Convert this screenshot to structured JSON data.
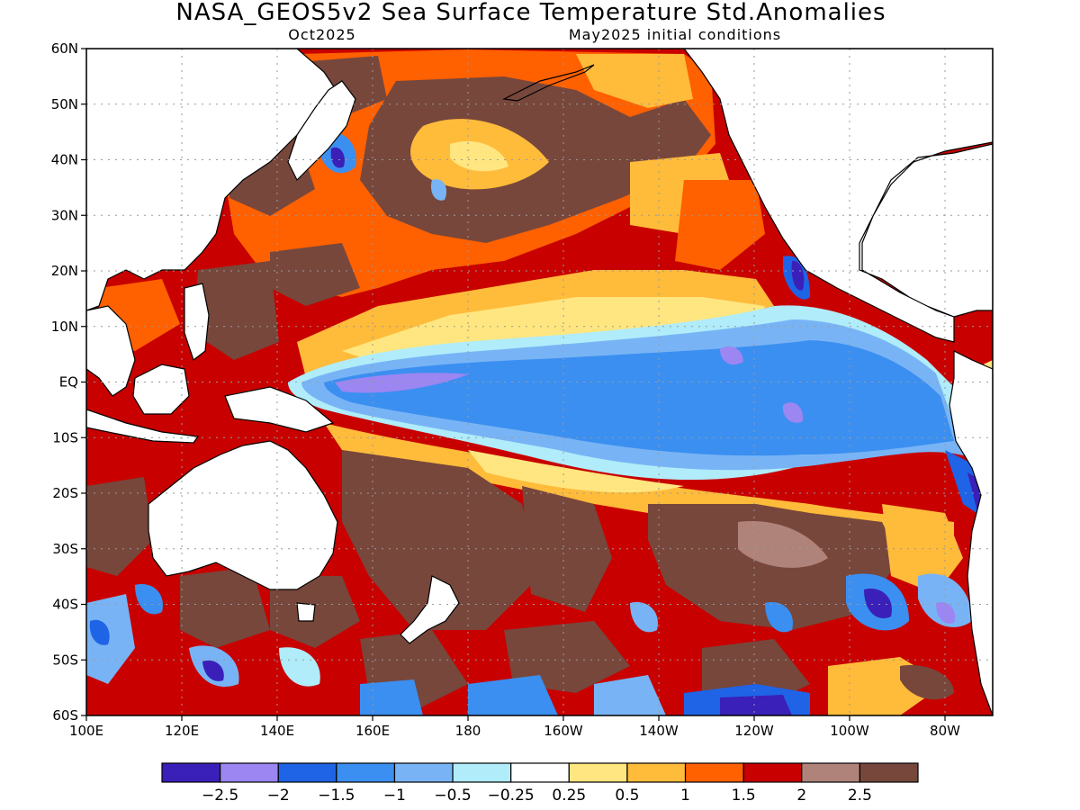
{
  "title": "NASA_GEOS5v2 Sea Surface Temperature Std.Anomalies",
  "subtitle_left": "Oct2025",
  "subtitle_right": "May2025 initial conditions",
  "map": {
    "lon_range": [
      100,
      290
    ],
    "lat_range": [
      -60,
      60
    ],
    "lat_ticks": [
      {
        "value": 60,
        "label": "60N"
      },
      {
        "value": 50,
        "label": "50N"
      },
      {
        "value": 40,
        "label": "40N"
      },
      {
        "value": 30,
        "label": "30N"
      },
      {
        "value": 20,
        "label": "20N"
      },
      {
        "value": 10,
        "label": "10N"
      },
      {
        "value": 0,
        "label": "EQ"
      },
      {
        "value": -10,
        "label": "10S"
      },
      {
        "value": -20,
        "label": "20S"
      },
      {
        "value": -30,
        "label": "30S"
      },
      {
        "value": -40,
        "label": "40S"
      },
      {
        "value": -50,
        "label": "50S"
      },
      {
        "value": -60,
        "label": "60S"
      }
    ],
    "lon_ticks": [
      {
        "value": 100,
        "label": "100E"
      },
      {
        "value": 120,
        "label": "120E"
      },
      {
        "value": 140,
        "label": "140E"
      },
      {
        "value": 160,
        "label": "160E"
      },
      {
        "value": 180,
        "label": "180"
      },
      {
        "value": 200,
        "label": "160W"
      },
      {
        "value": 220,
        "label": "140W"
      },
      {
        "value": 240,
        "label": "120W"
      },
      {
        "value": 260,
        "label": "100W"
      },
      {
        "value": 280,
        "label": "80W"
      }
    ],
    "grid": true,
    "land_color": "#ffffff",
    "coast_color": "#000000"
  },
  "colorbar": {
    "colors": [
      "#3a20b8",
      "#9b86f2",
      "#1f64e6",
      "#3b8ff0",
      "#78b4f5",
      "#b0ecfa",
      "#ffffff",
      "#ffe680",
      "#ffbb3a",
      "#ff6000",
      "#c80000",
      "#b0837a",
      "#77473c"
    ],
    "labels": [
      "−2.5",
      "−2",
      "−1.5",
      "−1",
      "−0.5",
      "−0.25",
      "0.25",
      "0.5",
      "1",
      "1.5",
      "2",
      "2.5"
    ]
  }
}
